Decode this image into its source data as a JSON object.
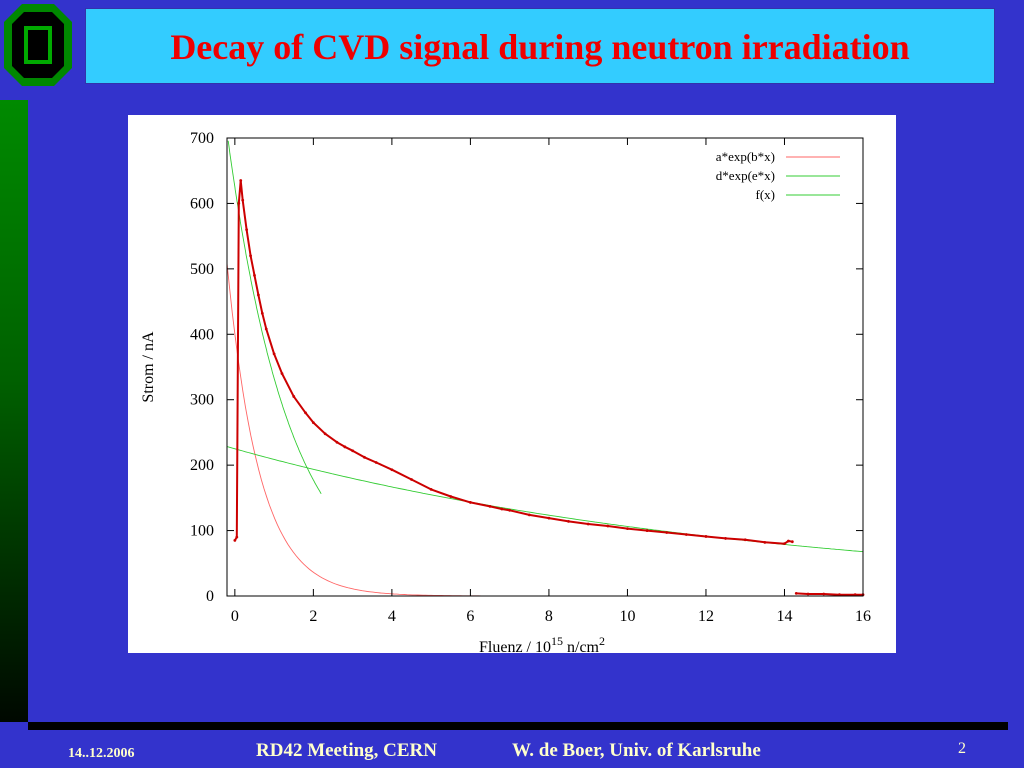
{
  "slide": {
    "title": "Decay of CVD signal during neutron irradiation",
    "footer_date": "14..12.2006",
    "footer_meeting": "RD42 Meeting, CERN",
    "footer_author": "W. de Boer, Univ. of Karlsruhe",
    "page_number": "2"
  },
  "colors": {
    "background": "#3333cc",
    "title_box": "#33ccff",
    "title_text": "#ee0000",
    "footer_text": "#ffffcc",
    "series_data": "#cc0000",
    "fit_a": "#ff6666",
    "fit_d": "#33cc33",
    "fit_f": "#33cc33"
  },
  "chart_data": {
    "type": "scatter",
    "xlabel": "Fluenz / 10",
    "xlabel_sup1": "15",
    "xlabel_mid": " n/cm",
    "xlabel_sup2": "2",
    "ylabel": "Strom / nA",
    "xlim": [
      -0.2,
      16
    ],
    "ylim": [
      0,
      700
    ],
    "xticks": [
      0,
      2,
      4,
      6,
      8,
      10,
      12,
      14,
      16
    ],
    "yticks": [
      0,
      100,
      200,
      300,
      400,
      500,
      600,
      700
    ],
    "grid": false,
    "legend_position": "top-right",
    "legend": [
      "a*exp(b*x)",
      "d*exp(e*x)",
      "f(x)"
    ],
    "series": [
      {
        "type": "scatter",
        "color": "#cc0000",
        "x": [
          0.0,
          0.05,
          0.1,
          0.15,
          0.2,
          0.3,
          0.4,
          0.5,
          0.6,
          0.7,
          0.8,
          1.0,
          1.2,
          1.5,
          1.8,
          2.0,
          2.3,
          2.6,
          2.8,
          3.0,
          3.3,
          3.6,
          4.0,
          4.5,
          5.0,
          5.5,
          6.0,
          6.5,
          6.8,
          7.0,
          7.5,
          8.0,
          8.5,
          9.0,
          9.5,
          10.0,
          10.5,
          11.0,
          11.5,
          12.0,
          12.5,
          13.0,
          13.5,
          14.0,
          14.1,
          14.2
        ],
        "y": [
          85,
          90,
          600,
          635,
          605,
          560,
          520,
          490,
          460,
          432,
          408,
          370,
          340,
          305,
          280,
          265,
          248,
          235,
          228,
          222,
          212,
          204,
          193,
          178,
          163,
          152,
          143,
          137,
          133,
          131,
          124,
          119,
          114,
          110,
          107,
          103,
          100,
          97,
          94,
          91,
          88,
          86,
          82,
          80,
          84,
          83
        ]
      },
      {
        "type": "scatter",
        "color": "#cc0000",
        "x": [
          14.3,
          14.6,
          15.0,
          15.4,
          15.8,
          16.0
        ],
        "y": [
          4,
          3,
          3,
          2,
          2,
          2
        ]
      }
    ],
    "fits": [
      {
        "name": "a*exp(b*x)",
        "color": "#ff6666",
        "a": 400,
        "b": -1.2
      },
      {
        "name": "d*exp(e*x)",
        "color": "#33cc33",
        "a": 225,
        "b": -0.075
      },
      {
        "name": "f(x)",
        "color": "#33cc33",
        "a": 625,
        "b": -0.63,
        "x_max": 2.2
      }
    ]
  }
}
